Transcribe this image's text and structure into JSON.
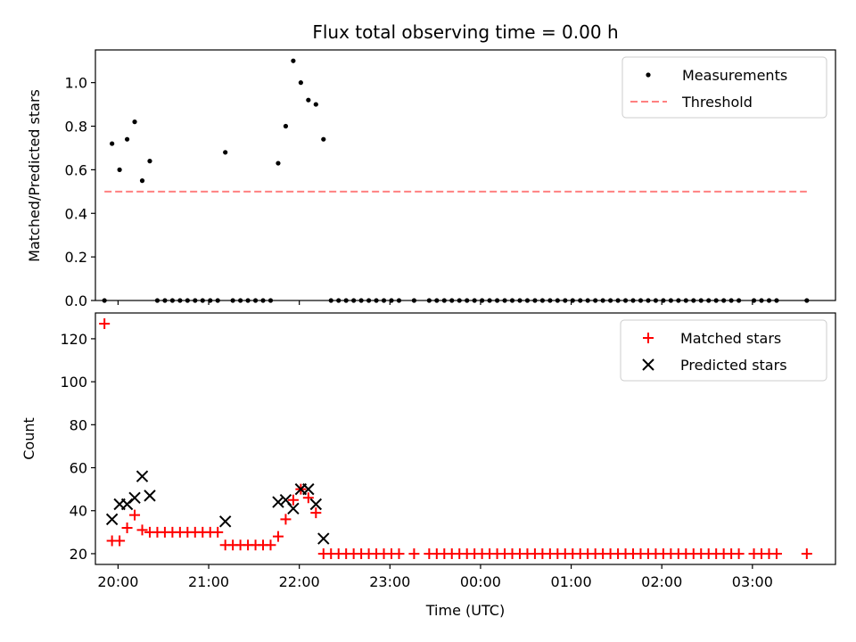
{
  "chart_data": [
    {
      "type": "scatter",
      "title": "Flux total observing time = 0.00 h",
      "ylabel": "Matched/Predicted stars",
      "xlabel": "",
      "xlim": [
        "19:45",
        "03:55"
      ],
      "ylim": [
        0,
        1.15
      ],
      "yticks": [
        0.0,
        0.2,
        0.4,
        0.6,
        0.8,
        1.0
      ],
      "ytick_labels": [
        "0.0",
        "0.2",
        "0.4",
        "0.6",
        "0.8",
        "1.0"
      ],
      "legend": "top-right",
      "series": [
        {
          "name": "Measurements",
          "kind": "scatter",
          "color": "#000000",
          "marker": "dot",
          "points": [
            [
              "19:51",
              0.0
            ],
            [
              "19:56",
              0.72
            ],
            [
              "20:01",
              0.6
            ],
            [
              "20:06",
              0.74
            ],
            [
              "20:11",
              0.82
            ],
            [
              "20:16",
              0.55
            ],
            [
              "20:21",
              0.64
            ],
            [
              "20:26",
              0.0
            ],
            [
              "20:31",
              0.0
            ],
            [
              "20:36",
              0.0
            ],
            [
              "20:41",
              0.0
            ],
            [
              "20:46",
              0.0
            ],
            [
              "20:51",
              0.0
            ],
            [
              "20:56",
              0.0
            ],
            [
              "21:01",
              0.0
            ],
            [
              "21:06",
              0.0
            ],
            [
              "21:11",
              0.68
            ],
            [
              "21:16",
              0.0
            ],
            [
              "21:21",
              0.0
            ],
            [
              "21:26",
              0.0
            ],
            [
              "21:31",
              0.0
            ],
            [
              "21:36",
              0.0
            ],
            [
              "21:41",
              0.0
            ],
            [
              "21:46",
              0.63
            ],
            [
              "21:51",
              0.8
            ],
            [
              "21:56",
              1.1
            ],
            [
              "22:01",
              1.0
            ],
            [
              "22:06",
              0.92
            ],
            [
              "22:11",
              0.9
            ],
            [
              "22:16",
              0.74
            ],
            [
              "22:21",
              0.0
            ],
            [
              "22:26",
              0.0
            ],
            [
              "22:31",
              0.0
            ],
            [
              "22:36",
              0.0
            ],
            [
              "22:41",
              0.0
            ],
            [
              "22:46",
              0.0
            ],
            [
              "22:51",
              0.0
            ],
            [
              "22:56",
              0.0
            ],
            [
              "23:01",
              0.0
            ],
            [
              "23:06",
              0.0
            ],
            [
              "23:16",
              0.0
            ],
            [
              "23:26",
              0.0
            ],
            [
              "23:31",
              0.0
            ],
            [
              "23:36",
              0.0
            ],
            [
              "23:41",
              0.0
            ],
            [
              "23:46",
              0.0
            ],
            [
              "23:51",
              0.0
            ],
            [
              "23:56",
              0.0
            ],
            [
              "00:01",
              0.0
            ],
            [
              "00:06",
              0.0
            ],
            [
              "00:11",
              0.0
            ],
            [
              "00:16",
              0.0
            ],
            [
              "00:21",
              0.0
            ],
            [
              "00:26",
              0.0
            ],
            [
              "00:31",
              0.0
            ],
            [
              "00:36",
              0.0
            ],
            [
              "00:41",
              0.0
            ],
            [
              "00:46",
              0.0
            ],
            [
              "00:51",
              0.0
            ],
            [
              "00:56",
              0.0
            ],
            [
              "01:01",
              0.0
            ],
            [
              "01:06",
              0.0
            ],
            [
              "01:11",
              0.0
            ],
            [
              "01:16",
              0.0
            ],
            [
              "01:21",
              0.0
            ],
            [
              "01:26",
              0.0
            ],
            [
              "01:31",
              0.0
            ],
            [
              "01:36",
              0.0
            ],
            [
              "01:41",
              0.0
            ],
            [
              "01:46",
              0.0
            ],
            [
              "01:51",
              0.0
            ],
            [
              "01:56",
              0.0
            ],
            [
              "02:01",
              0.0
            ],
            [
              "02:06",
              0.0
            ],
            [
              "02:11",
              0.0
            ],
            [
              "02:16",
              0.0
            ],
            [
              "02:21",
              0.0
            ],
            [
              "02:26",
              0.0
            ],
            [
              "02:31",
              0.0
            ],
            [
              "02:36",
              0.0
            ],
            [
              "02:41",
              0.0
            ],
            [
              "02:46",
              0.0
            ],
            [
              "02:51",
              0.0
            ],
            [
              "03:01",
              0.0
            ],
            [
              "03:06",
              0.0
            ],
            [
              "03:11",
              0.0
            ],
            [
              "03:16",
              0.0
            ],
            [
              "03:36",
              0.0
            ]
          ]
        },
        {
          "name": "Threshold",
          "kind": "line",
          "color": "#ff8080",
          "dash": "dashed",
          "points": [
            [
              "19:51",
              0.5
            ],
            [
              "03:36",
              0.5
            ]
          ]
        }
      ]
    },
    {
      "type": "scatter",
      "title": "",
      "ylabel": "Count",
      "xlabel": "Time (UTC)",
      "xlim": [
        "19:45",
        "03:55"
      ],
      "ylim": [
        15,
        132
      ],
      "xticks": [
        "20:00",
        "21:00",
        "22:00",
        "23:00",
        "00:00",
        "01:00",
        "02:00",
        "03:00"
      ],
      "yticks": [
        20,
        40,
        60,
        80,
        100,
        120
      ],
      "ytick_labels": [
        "20",
        "40",
        "60",
        "80",
        "100",
        "120"
      ],
      "legend": "top-right",
      "series": [
        {
          "name": "Matched stars",
          "kind": "scatter",
          "color": "#ff0000",
          "marker": "plus",
          "points": [
            [
              "19:51",
              127
            ],
            [
              "19:56",
              26
            ],
            [
              "20:01",
              26
            ],
            [
              "20:06",
              32
            ],
            [
              "20:11",
              38
            ],
            [
              "20:16",
              31
            ],
            [
              "20:21",
              30
            ],
            [
              "20:26",
              30
            ],
            [
              "20:31",
              30
            ],
            [
              "20:36",
              30
            ],
            [
              "20:41",
              30
            ],
            [
              "20:46",
              30
            ],
            [
              "20:51",
              30
            ],
            [
              "20:56",
              30
            ],
            [
              "21:01",
              30
            ],
            [
              "21:06",
              30
            ],
            [
              "21:11",
              24
            ],
            [
              "21:16",
              24
            ],
            [
              "21:21",
              24
            ],
            [
              "21:26",
              24
            ],
            [
              "21:31",
              24
            ],
            [
              "21:36",
              24
            ],
            [
              "21:41",
              24
            ],
            [
              "21:46",
              28
            ],
            [
              "21:51",
              36
            ],
            [
              "21:56",
              45
            ],
            [
              "22:01",
              50
            ],
            [
              "22:06",
              46
            ],
            [
              "22:11",
              39
            ],
            [
              "22:16",
              20
            ],
            [
              "22:21",
              20
            ],
            [
              "22:26",
              20
            ],
            [
              "22:31",
              20
            ],
            [
              "22:36",
              20
            ],
            [
              "22:41",
              20
            ],
            [
              "22:46",
              20
            ],
            [
              "22:51",
              20
            ],
            [
              "22:56",
              20
            ],
            [
              "23:01",
              20
            ],
            [
              "23:06",
              20
            ],
            [
              "23:16",
              20
            ],
            [
              "23:26",
              20
            ],
            [
              "23:31",
              20
            ],
            [
              "23:36",
              20
            ],
            [
              "23:41",
              20
            ],
            [
              "23:46",
              20
            ],
            [
              "23:51",
              20
            ],
            [
              "23:56",
              20
            ],
            [
              "00:01",
              20
            ],
            [
              "00:06",
              20
            ],
            [
              "00:11",
              20
            ],
            [
              "00:16",
              20
            ],
            [
              "00:21",
              20
            ],
            [
              "00:26",
              20
            ],
            [
              "00:31",
              20
            ],
            [
              "00:36",
              20
            ],
            [
              "00:41",
              20
            ],
            [
              "00:46",
              20
            ],
            [
              "00:51",
              20
            ],
            [
              "00:56",
              20
            ],
            [
              "01:01",
              20
            ],
            [
              "01:06",
              20
            ],
            [
              "01:11",
              20
            ],
            [
              "01:16",
              20
            ],
            [
              "01:21",
              20
            ],
            [
              "01:26",
              20
            ],
            [
              "01:31",
              20
            ],
            [
              "01:36",
              20
            ],
            [
              "01:41",
              20
            ],
            [
              "01:46",
              20
            ],
            [
              "01:51",
              20
            ],
            [
              "01:56",
              20
            ],
            [
              "02:01",
              20
            ],
            [
              "02:06",
              20
            ],
            [
              "02:11",
              20
            ],
            [
              "02:16",
              20
            ],
            [
              "02:21",
              20
            ],
            [
              "02:26",
              20
            ],
            [
              "02:31",
              20
            ],
            [
              "02:36",
              20
            ],
            [
              "02:41",
              20
            ],
            [
              "02:46",
              20
            ],
            [
              "02:51",
              20
            ],
            [
              "03:01",
              20
            ],
            [
              "03:06",
              20
            ],
            [
              "03:11",
              20
            ],
            [
              "03:16",
              20
            ],
            [
              "03:36",
              20
            ]
          ]
        },
        {
          "name": "Predicted stars",
          "kind": "scatter",
          "color": "#000000",
          "marker": "x",
          "points": [
            [
              "19:56",
              36
            ],
            [
              "20:01",
              43
            ],
            [
              "20:06",
              43
            ],
            [
              "20:11",
              46
            ],
            [
              "20:16",
              56
            ],
            [
              "20:21",
              47
            ],
            [
              "21:11",
              35
            ],
            [
              "21:46",
              44
            ],
            [
              "21:51",
              45
            ],
            [
              "21:56",
              41
            ],
            [
              "22:01",
              50
            ],
            [
              "22:06",
              50
            ],
            [
              "22:11",
              43
            ],
            [
              "22:16",
              27
            ]
          ]
        }
      ]
    }
  ]
}
